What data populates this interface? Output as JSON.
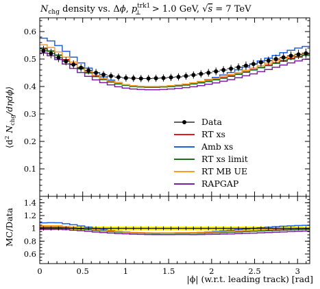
{
  "chart_data": {
    "type": "line",
    "title": "N_chg density vs. Δφ, p_⊥^trk1 > 1.0 GeV, √s = 7 TeV",
    "title_parts": {
      "main": "N",
      "main_sub": "chg",
      "mid": " density vs. Δ",
      "phi": "ϕ",
      "comma": ", ",
      "p": "p",
      "p_sub": "⊥",
      "p_sup": "trk1",
      "cut": " > 1.0 GeV, ",
      "sqrt_part": "√",
      "s": "s",
      "energy": " = 7 TeV"
    },
    "ylabel": "⟨d² N_chg/dηdϕ⟩",
    "ylabel_parts": {
      "open": "⟨d",
      "sq": "2",
      "n": " N",
      "n_sub": "chg",
      "rest": "/dηdϕ⟩"
    },
    "ratio_ylabel": "MC/Data",
    "xlabel": "|ϕ| (w.r.t. leading track) [rad]",
    "xlim": [
      0,
      3.1416
    ],
    "ylim": [
      0,
      0.65
    ],
    "ratio_ylim": [
      0.45,
      1.5
    ],
    "xticks": [
      0,
      0.5,
      1,
      1.5,
      2,
      2.5,
      3
    ],
    "xtick_labels": [
      "0",
      "0.5",
      "1",
      "1.5",
      "2",
      "2.5",
      "3"
    ],
    "yticks": [
      0.1,
      0.2,
      0.3,
      0.4,
      0.5,
      0.6
    ],
    "ytick_labels": [
      "0.1",
      "0.2",
      "0.3",
      "0.4",
      "0.5",
      "0.6"
    ],
    "ratio_yticks": [
      0.6,
      0.8,
      1,
      1.2,
      1.4
    ],
    "ratio_ytick_labels": [
      "0.6",
      "0.8",
      "1",
      "1.2",
      "1.4"
    ],
    "legend_position": "center-right",
    "n_bins": 36,
    "data": {
      "name": "Data",
      "color": "#000000",
      "x": [
        0.0436,
        0.1309,
        0.2182,
        0.3054,
        0.3927,
        0.48,
        0.5672,
        0.6545,
        0.7418,
        0.829,
        0.9163,
        1.0036,
        1.0908,
        1.1781,
        1.2654,
        1.3526,
        1.4399,
        1.5272,
        1.6144,
        1.7017,
        1.789,
        1.8762,
        1.9635,
        2.0508,
        2.138,
        2.2253,
        2.3126,
        2.3998,
        2.4871,
        2.5744,
        2.6616,
        2.7489,
        2.8362,
        2.9234,
        3.0107,
        3.098
      ],
      "y": [
        0.53,
        0.52,
        0.505,
        0.492,
        0.48,
        0.468,
        0.458,
        0.45,
        0.443,
        0.438,
        0.434,
        0.431,
        0.43,
        0.429,
        0.429,
        0.43,
        0.431,
        0.433,
        0.435,
        0.438,
        0.442,
        0.446,
        0.45,
        0.455,
        0.46,
        0.465,
        0.47,
        0.476,
        0.482,
        0.488,
        0.494,
        0.5,
        0.506,
        0.512,
        0.517,
        0.521
      ],
      "err": [
        0.018,
        0.017,
        0.016,
        0.015,
        0.015,
        0.014,
        0.014,
        0.014,
        0.013,
        0.013,
        0.013,
        0.013,
        0.013,
        0.013,
        0.013,
        0.013,
        0.013,
        0.013,
        0.013,
        0.013,
        0.013,
        0.013,
        0.014,
        0.014,
        0.014,
        0.014,
        0.014,
        0.015,
        0.015,
        0.015,
        0.015,
        0.016,
        0.016,
        0.016,
        0.017,
        0.017
      ]
    },
    "series": [
      {
        "name": "RT xs",
        "color": "#e41a1c",
        "y": [
          0.54,
          0.53,
          0.515,
          0.498,
          0.482,
          0.466,
          0.451,
          0.438,
          0.427,
          0.418,
          0.411,
          0.406,
          0.402,
          0.4,
          0.399,
          0.399,
          0.4,
          0.402,
          0.404,
          0.407,
          0.411,
          0.415,
          0.42,
          0.426,
          0.432,
          0.439,
          0.446,
          0.454,
          0.462,
          0.47,
          0.478,
          0.487,
          0.495,
          0.503,
          0.51,
          0.516
        ]
      },
      {
        "name": "Amb xs",
        "color": "#1f5ee0",
        "y": [
          0.576,
          0.566,
          0.549,
          0.528,
          0.507,
          0.486,
          0.467,
          0.45,
          0.435,
          0.423,
          0.414,
          0.407,
          0.402,
          0.399,
          0.397,
          0.397,
          0.398,
          0.4,
          0.403,
          0.407,
          0.412,
          0.418,
          0.425,
          0.433,
          0.442,
          0.451,
          0.461,
          0.471,
          0.482,
          0.493,
          0.503,
          0.513,
          0.523,
          0.532,
          0.54,
          0.546
        ]
      },
      {
        "name": "RT xs limit",
        "color": "#1a6e1a",
        "y": [
          0.537,
          0.528,
          0.513,
          0.496,
          0.48,
          0.464,
          0.449,
          0.436,
          0.425,
          0.416,
          0.409,
          0.404,
          0.4,
          0.398,
          0.397,
          0.397,
          0.398,
          0.4,
          0.402,
          0.405,
          0.409,
          0.413,
          0.418,
          0.424,
          0.43,
          0.437,
          0.444,
          0.452,
          0.46,
          0.468,
          0.476,
          0.484,
          0.492,
          0.5,
          0.507,
          0.513
        ]
      },
      {
        "name": "RT MB UE",
        "color": "#ff9a1f",
        "y": [
          0.552,
          0.542,
          0.526,
          0.507,
          0.489,
          0.471,
          0.455,
          0.441,
          0.429,
          0.42,
          0.413,
          0.407,
          0.403,
          0.401,
          0.4,
          0.4,
          0.401,
          0.403,
          0.406,
          0.409,
          0.413,
          0.418,
          0.423,
          0.429,
          0.436,
          0.443,
          0.451,
          0.459,
          0.467,
          0.476,
          0.485,
          0.494,
          0.502,
          0.51,
          0.517,
          0.522
        ]
      },
      {
        "name": "RAPGAP",
        "color": "#7b1fa2",
        "y": [
          0.522,
          0.512,
          0.498,
          0.482,
          0.466,
          0.451,
          0.437,
          0.424,
          0.414,
          0.406,
          0.399,
          0.394,
          0.391,
          0.389,
          0.388,
          0.388,
          0.389,
          0.391,
          0.393,
          0.396,
          0.399,
          0.403,
          0.408,
          0.413,
          0.419,
          0.425,
          0.432,
          0.439,
          0.446,
          0.454,
          0.462,
          0.47,
          0.478,
          0.486,
          0.493,
          0.499
        ]
      }
    ],
    "band_colors": {
      "outer": "#ffff00",
      "inner": "#ffd400"
    }
  }
}
